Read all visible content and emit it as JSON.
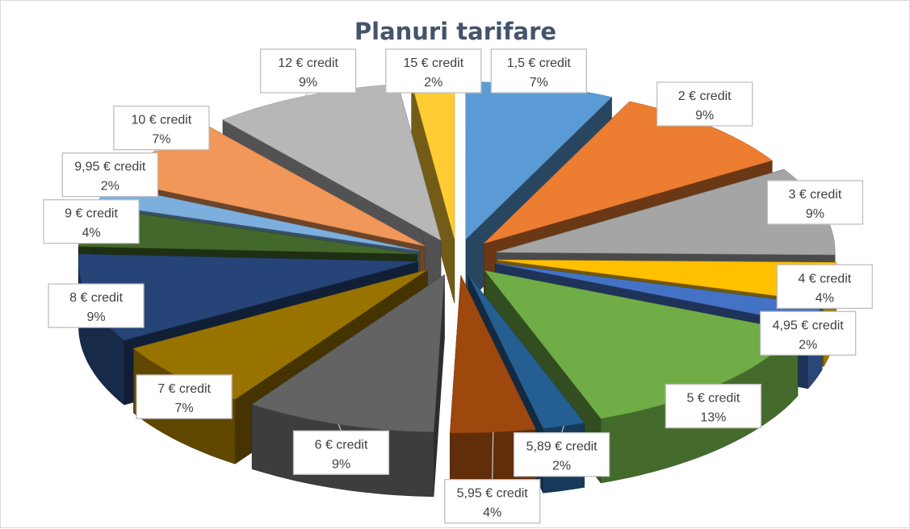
{
  "chart_data": {
    "type": "pie",
    "style": "3d-exploded",
    "title": "Planuri tarifare",
    "series": [
      {
        "label": "1,5 € credit",
        "pct": "7%",
        "value": 7,
        "color": "#5b9bd5"
      },
      {
        "label": "2 € credit",
        "pct": "9%",
        "value": 9,
        "color": "#ed7d31"
      },
      {
        "label": "3 € credit",
        "pct": "9%",
        "value": 9,
        "color": "#a5a5a5"
      },
      {
        "label": "4 € credit",
        "pct": "4%",
        "value": 4,
        "color": "#ffc000"
      },
      {
        "label": "4,95 € credit",
        "pct": "2%",
        "value": 2,
        "color": "#4472c4"
      },
      {
        "label": "5 € credit",
        "pct": "13%",
        "value": 13,
        "color": "#70ad47"
      },
      {
        "label": "5,89 € credit",
        "pct": "2%",
        "value": 2,
        "color": "#255e91"
      },
      {
        "label": "5,95 € credit",
        "pct": "4%",
        "value": 4,
        "color": "#9e480e"
      },
      {
        "label": "6 € credit",
        "pct": "9%",
        "value": 9,
        "color": "#636363"
      },
      {
        "label": "7 € credit",
        "pct": "7%",
        "value": 7,
        "color": "#997300"
      },
      {
        "label": "8 € credit",
        "pct": "9%",
        "value": 9,
        "color": "#264478"
      },
      {
        "label": "9 € credit",
        "pct": "4%",
        "value": 4,
        "color": "#43682b"
      },
      {
        "label": "9,95 € credit",
        "pct": "2%",
        "value": 2,
        "color": "#7cafdd"
      },
      {
        "label": "10 € credit",
        "pct": "7%",
        "value": 7,
        "color": "#f1975a"
      },
      {
        "label": "12 € credit",
        "pct": "9%",
        "value": 9,
        "color": "#b7b7b7"
      },
      {
        "label": "15 € credit",
        "pct": "2%",
        "value": 2,
        "color": "#ffcd33"
      }
    ],
    "legend": "none",
    "data_labels": "callouts"
  }
}
